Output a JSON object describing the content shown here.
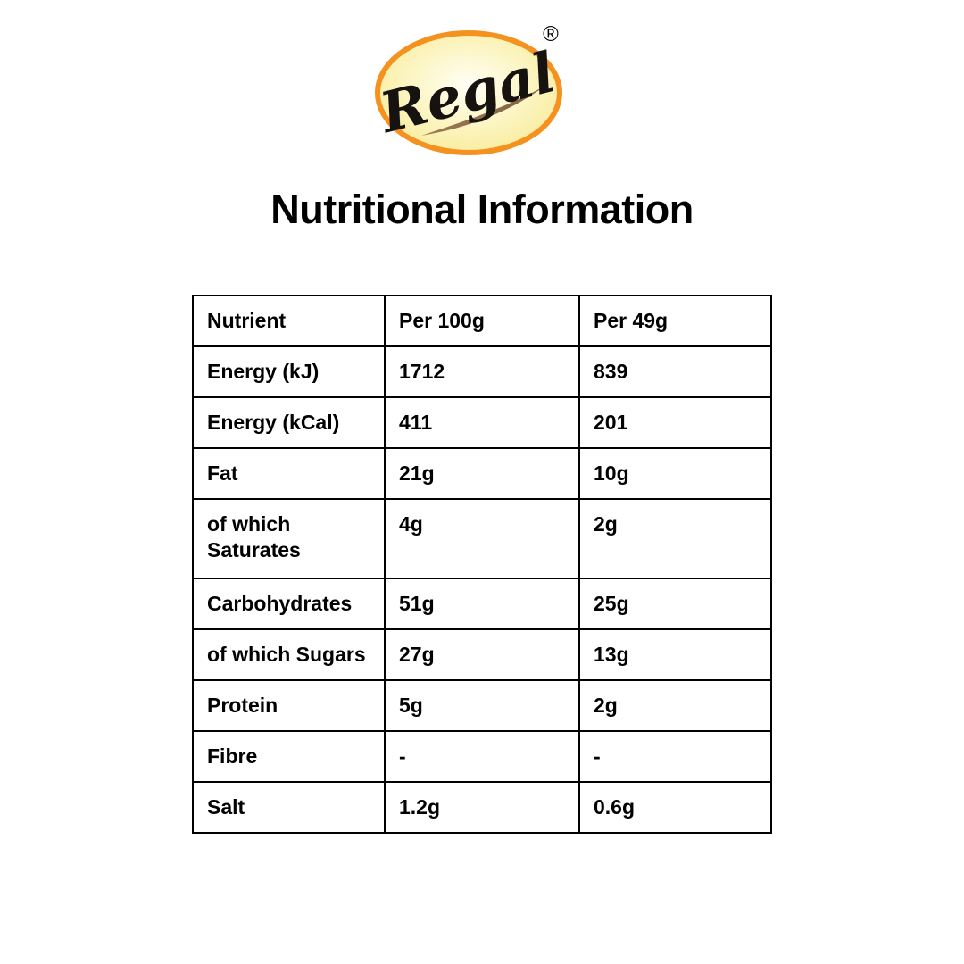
{
  "logo": {
    "brand": "Regal",
    "registered_mark": "®",
    "swoosh_icon": "brush-swoosh",
    "colors": {
      "border_orange": "#F5921F",
      "fill_center": "#FFFFF6",
      "fill_edge": "#F6E47E",
      "swoosh_brown": "#8A6A4B",
      "text": "#000000"
    }
  },
  "title": "Nutritional Information",
  "table": {
    "headers": [
      "Nutrient",
      "Per 100g",
      "Per 49g"
    ],
    "rows": [
      {
        "nutrient": "Energy (kJ)",
        "per_100g": "1712",
        "per_49g": "839"
      },
      {
        "nutrient": "Energy (kCal)",
        "per_100g": "411",
        "per_49g": "201"
      },
      {
        "nutrient": "Fat",
        "per_100g": "21g",
        "per_49g": "10g"
      },
      {
        "nutrient": "of which\nSaturates",
        "per_100g": "4g",
        "per_49g": "2g"
      },
      {
        "nutrient": "Carbohydrates",
        "per_100g": "51g",
        "per_49g": "25g"
      },
      {
        "nutrient": "of which Sugars",
        "per_100g": "27g",
        "per_49g": "13g"
      },
      {
        "nutrient": "Protein",
        "per_100g": "5g",
        "per_49g": "2g"
      },
      {
        "nutrient": "Fibre",
        "per_100g": "-",
        "per_49g": "-"
      },
      {
        "nutrient": "Salt",
        "per_100g": "1.2g",
        "per_49g": "0.6g"
      }
    ]
  }
}
